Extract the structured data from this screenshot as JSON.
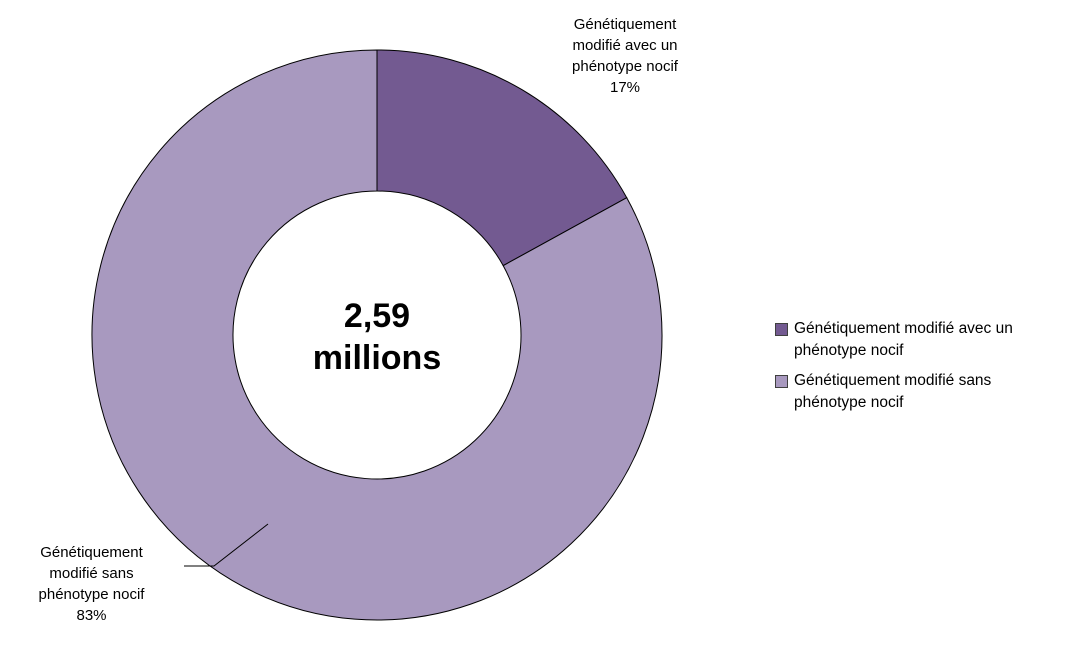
{
  "chart_data": {
    "type": "pie",
    "subtype": "doughnut",
    "center_text": [
      "2,59",
      "millions"
    ],
    "slices": [
      {
        "name": "Génétiquement modifié avec un phénotype nocif",
        "label_lines": [
          "Génétiquement",
          "modifié avec un",
          "phénotype nocif",
          "17%"
        ],
        "value": 17,
        "percent_label": "17%",
        "color": "#735A91"
      },
      {
        "name": "Génétiquement modifié sans phénotype nocif",
        "label_lines": [
          "Génétiquement",
          "modifié sans",
          "phénotype nocif",
          "83%"
        ],
        "value": 83,
        "percent_label": "83%",
        "color": "#A899BF"
      }
    ],
    "legend": {
      "position": "right",
      "items": [
        {
          "lines": [
            "Génétiquement modifié avec un",
            "phénotype nocif"
          ],
          "color": "#735A91"
        },
        {
          "lines": [
            "Génétiquement modifié sans",
            "phénotype nocif"
          ],
          "color": "#A899BF"
        }
      ]
    }
  }
}
